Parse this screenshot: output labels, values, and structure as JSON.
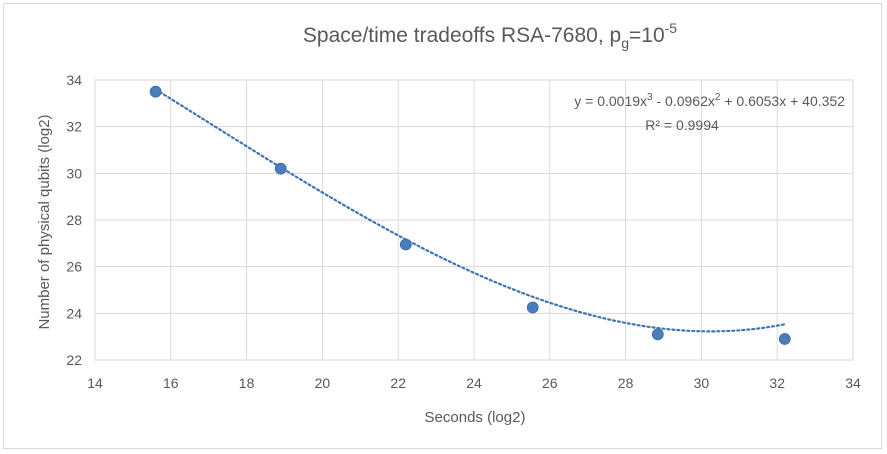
{
  "chart_data": {
    "type": "scatter",
    "title": {
      "main": "Space/time tradeoffs RSA-7680, p",
      "sub": "g",
      "mid": "=10",
      "sup": "-5"
    },
    "xlabel": "Seconds (log2)",
    "ylabel": "Number of physical qubits (log2)",
    "xlim": [
      14,
      34
    ],
    "ylim": [
      22,
      34
    ],
    "xticks": [
      14,
      16,
      18,
      20,
      22,
      24,
      26,
      28,
      30,
      32,
      34
    ],
    "yticks": [
      22,
      24,
      26,
      28,
      30,
      32,
      34
    ],
    "grid": true,
    "points": {
      "x": [
        15.6,
        18.9,
        22.2,
        25.55,
        28.85,
        32.2
      ],
      "y": [
        33.5,
        30.2,
        26.95,
        24.25,
        23.1,
        22.9
      ]
    },
    "trendline": {
      "type": "polynomial",
      "coefficients": [
        0.0019,
        -0.0962,
        0.6053,
        40.352
      ],
      "equation": {
        "p1": "y = 0.0019x",
        "e1": "3",
        "p2": " - 0.0962x",
        "e2": "2",
        "p3": " + 0.6053x + 40.352"
      },
      "r2": "R² = 0.9994",
      "style": "dotted"
    },
    "colors": {
      "marker": "#4a7ebb",
      "trendline": "#3d74b5",
      "grid": "#d9d9d9",
      "text": "#595959"
    }
  }
}
